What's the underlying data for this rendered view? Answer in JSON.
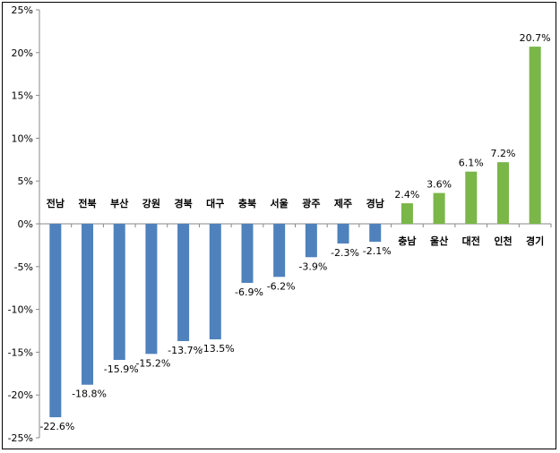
{
  "chart_data": {
    "type": "bar",
    "categories": [
      "전남",
      "전북",
      "부산",
      "강원",
      "경북",
      "대구",
      "충북",
      "서울",
      "광주",
      "제주",
      "경남",
      "충남",
      "울산",
      "대전",
      "인천",
      "경기"
    ],
    "values": [
      -22.6,
      -18.8,
      -15.9,
      -15.2,
      -13.7,
      -13.5,
      -6.9,
      -6.2,
      -3.9,
      -2.3,
      -2.1,
      2.4,
      3.6,
      6.1,
      7.2,
      20.7
    ],
    "value_labels": [
      "-22.6%",
      "-18.8%",
      "-15.9%",
      "-15.2%",
      "-13.7%",
      "-13.5%",
      "-6.9%",
      "-6.2%",
      "-3.9%",
      "-2.3%",
      "-2.1%",
      "2.4%",
      "3.6%",
      "6.1%",
      "7.2%",
      "20.7%"
    ],
    "ylim": [
      -25,
      25
    ],
    "y_ticks": [
      25,
      20,
      15,
      10,
      5,
      0,
      -5,
      -10,
      -15,
      -20,
      -25
    ],
    "y_tick_labels": [
      "25%",
      "20%",
      "15%",
      "10%",
      "5%",
      "0%",
      "-5%",
      "-10%",
      "-15%",
      "-20%",
      "-25%"
    ],
    "grid": false,
    "legend": "none",
    "colors": {
      "negative": "#4f81bd",
      "positive": "#7ab648"
    }
  }
}
